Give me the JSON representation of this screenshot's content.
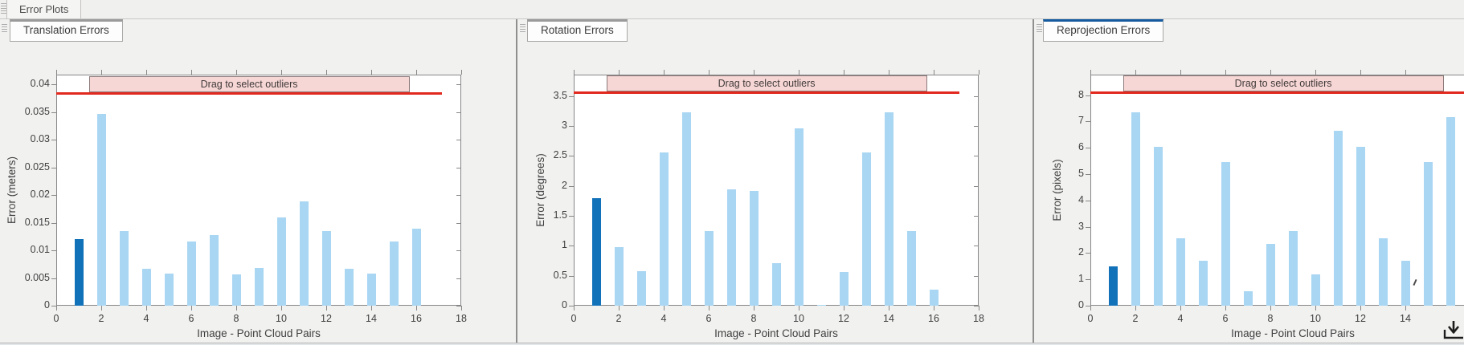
{
  "window": {
    "figure_tab": "Error Plots"
  },
  "panels": [
    {
      "tab": "Translation Errors",
      "selected": false
    },
    {
      "tab": "Rotation Errors",
      "selected": false
    },
    {
      "tab": "Reprojection Errors",
      "selected": true
    }
  ],
  "colors": {
    "bar": "#a9d6f3",
    "bar_selected": "#1272b9",
    "threshold_line": "#e2291f",
    "band_fill": "#f6d7d5",
    "band_border": "#8c7b7b",
    "tab_accent": "#9a9a9a",
    "tab_accent_selected": "#135a9e",
    "axis": "#878787",
    "text": "#3f3f3f"
  },
  "chart_data": [
    {
      "type": "bar",
      "title": "Translation Errors",
      "xlabel": "Image - Point Cloud Pairs",
      "ylabel": "Error (meters)",
      "band_label": "Drag to select outliers",
      "x": [
        1,
        2,
        3,
        4,
        5,
        6,
        7,
        8,
        9,
        10,
        11,
        12,
        13,
        14,
        15,
        16
      ],
      "values": [
        0.0121,
        0.0347,
        0.0135,
        0.0067,
        0.0058,
        0.0116,
        0.0127,
        0.0056,
        0.0068,
        0.016,
        0.0189,
        0.0135,
        0.0067,
        0.0058,
        0.0116,
        0.014
      ],
      "selected_bar_index": 0,
      "threshold": 0.0384,
      "xlim": [
        0,
        18
      ],
      "ylim": [
        0,
        0.0418
      ],
      "ytick_vals": [
        0,
        0.005,
        0.01,
        0.015,
        0.02,
        0.025,
        0.03,
        0.035,
        0.04
      ],
      "ytick_labels": [
        "0",
        "0.005",
        "0.01",
        "0.015",
        "0.02",
        "0.025",
        "0.03",
        "0.035",
        "0.04"
      ],
      "xtick_vals": [
        0,
        2,
        4,
        6,
        8,
        10,
        12,
        14,
        16,
        18
      ],
      "xtick_labels": [
        "0",
        "2",
        "4",
        "6",
        "8",
        "10",
        "12",
        "14",
        "16",
        "18"
      ],
      "band_x": [
        1.45,
        15.7
      ],
      "line_x": [
        0,
        17.15
      ],
      "clip_right": false
    },
    {
      "type": "bar",
      "title": "Rotation Errors",
      "xlabel": "Image - Point Cloud Pairs",
      "ylabel": "Error (degrees)",
      "band_label": "Drag to select outliers",
      "x": [
        1,
        2,
        3,
        4,
        5,
        6,
        7,
        8,
        9,
        10,
        11,
        12,
        13,
        14,
        15,
        16
      ],
      "values": [
        1.8,
        0.98,
        0.57,
        2.56,
        3.23,
        1.25,
        1.95,
        1.92,
        0.71,
        2.96,
        0.02,
        0.56,
        2.56,
        3.23,
        1.25,
        0.27
      ],
      "selected_bar_index": 0,
      "threshold": 3.56,
      "xlim": [
        0,
        18
      ],
      "ylim": [
        0,
        3.86
      ],
      "ytick_vals": [
        0,
        0.5,
        1,
        1.5,
        2,
        2.5,
        3,
        3.5
      ],
      "ytick_labels": [
        "0",
        "0.5",
        "1",
        "1.5",
        "2",
        "2.5",
        "3",
        "3.5"
      ],
      "xtick_vals": [
        0,
        2,
        4,
        6,
        8,
        10,
        12,
        14,
        16,
        18
      ],
      "xtick_labels": [
        "0",
        "2",
        "4",
        "6",
        "8",
        "10",
        "12",
        "14",
        "16",
        "18"
      ],
      "band_x": [
        1.45,
        15.7
      ],
      "line_x": [
        0,
        17.15
      ],
      "clip_right": false
    },
    {
      "type": "bar",
      "title": "Reprojection Errors",
      "xlabel": "Image - Point Cloud Pairs",
      "ylabel": "Error (pixels)",
      "band_label": "Drag to select outliers",
      "x": [
        1,
        2,
        3,
        4,
        5,
        6,
        7,
        8,
        9,
        10,
        11,
        12,
        13,
        14,
        15,
        16
      ],
      "values": [
        1.5,
        7.35,
        6.05,
        2.55,
        1.7,
        5.45,
        0.55,
        2.35,
        2.85,
        1.2,
        6.65,
        6.05,
        2.55,
        1.7,
        5.45,
        7.15
      ],
      "selected_bar_index": 0,
      "threshold": 8.12,
      "xlim": [
        0,
        18
      ],
      "ylim": [
        0,
        8.78
      ],
      "ytick_vals": [
        0,
        1,
        2,
        3,
        4,
        5,
        6,
        7,
        8
      ],
      "ytick_labels": [
        "0",
        "1",
        "2",
        "3",
        "4",
        "5",
        "6",
        "7",
        "8"
      ],
      "xtick_vals": [
        0,
        2,
        4,
        6,
        8,
        10,
        12,
        14
      ],
      "xtick_labels": [
        "0",
        "2",
        "4",
        "6",
        "8",
        "10",
        "12",
        "14"
      ],
      "band_x": [
        1.45,
        15.7
      ],
      "line_x": [
        0,
        19.2
      ],
      "clip_right": true
    }
  ]
}
